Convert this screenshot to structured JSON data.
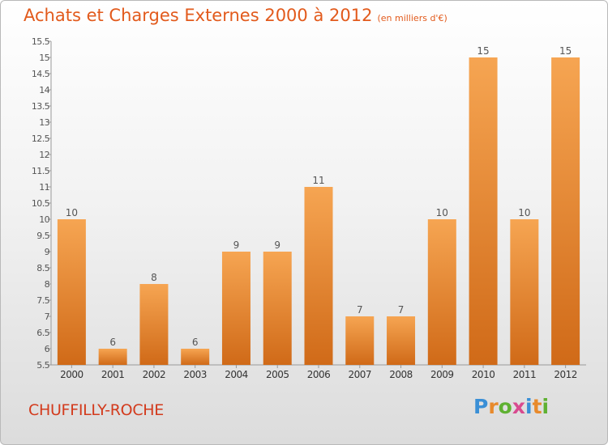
{
  "title": "Achats et Charges Externes 2000 à 2012",
  "title_unit": "(en milliers d'€)",
  "commune": "CHUFFILLY-ROCHE",
  "logo": {
    "letters": [
      "P",
      "r",
      "o",
      "x",
      "i",
      "t",
      "i"
    ],
    "colors": [
      "#3a8fd6",
      "#e88a2c",
      "#5fb132",
      "#d84a8f",
      "#3a8fd6",
      "#e88a2c",
      "#5fb132"
    ]
  },
  "colors": {
    "bar_top": "#f6a552",
    "bar_bottom": "#d06a18",
    "title": "#e25a1c",
    "label": "#555555"
  },
  "chart_data": {
    "type": "bar",
    "title": "Achats et Charges Externes 2000 à 2012",
    "categories": [
      "2000",
      "2001",
      "2002",
      "2003",
      "2004",
      "2005",
      "2006",
      "2007",
      "2008",
      "2009",
      "2010",
      "2011",
      "2012"
    ],
    "values": [
      10,
      6,
      8,
      6,
      9,
      9,
      11,
      7,
      7,
      10,
      15,
      10,
      15
    ],
    "data_labels": [
      "10",
      "6",
      "8",
      "6",
      "9",
      "9",
      "11",
      "7",
      "7",
      "10",
      "15",
      "10",
      "15"
    ],
    "xlabel": "",
    "ylabel": "",
    "ylim": [
      5.5,
      15.5
    ],
    "yticks": [
      5.5,
      6,
      6.5,
      7,
      7.5,
      8,
      8.5,
      9,
      9.5,
      10,
      10.5,
      11,
      11.5,
      12,
      12.5,
      13,
      13.5,
      14,
      14.5,
      15,
      15.5
    ],
    "ytick_labels": [
      "5.5",
      "6",
      "6.5",
      "7",
      "7.5",
      "8",
      "8.5",
      "9",
      "9.5",
      "10",
      "10.5",
      "11",
      "11.5",
      "12",
      "12.5",
      "13",
      "13.5",
      "14",
      "14.5",
      "15",
      "15.5"
    ],
    "grid": false
  }
}
